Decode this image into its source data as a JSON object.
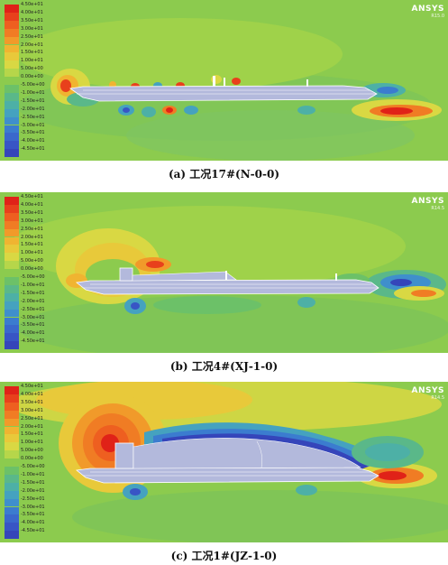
{
  "legend_labels": [
    "4.50e+01",
    "4.00e+01",
    "3.50e+01",
    "3.00e+01",
    "2.50e+01",
    "2.00e+01",
    "1.50e+01",
    "1.00e+01",
    "5.00e+00",
    "0.00e+00",
    "-5.00e+00",
    "-1.00e+01",
    "-1.50e+01",
    "-2.00e+01",
    "-2.50e+01",
    "-3.00e+01",
    "-3.50e+01",
    "-4.00e+01",
    "-4.50e+01"
  ],
  "legend_colors": [
    "#e02218",
    "#e8401c",
    "#ee5f20",
    "#f07c24",
    "#f19a2a",
    "#f0b431",
    "#e8c93a",
    "#d9d843",
    "#b6d64a",
    "#8ccb4e",
    "#6cc168",
    "#5ab889",
    "#4db0a6",
    "#45a2bf",
    "#3f8fcc",
    "#3b7ccf",
    "#3a68cc",
    "#3855c5",
    "#3545ba"
  ],
  "panels": [
    {
      "caption": "(a) 工况17#(N-0-0)",
      "brand": "ANSYS",
      "version": "R15.0"
    },
    {
      "caption": "(b) 工况4#(XJ-1-0)",
      "brand": "ANSYS",
      "version": "R14.5"
    },
    {
      "caption": "(c) 工况1#(JZ-1-0)",
      "brand": "ANSYS",
      "version": "R14.5"
    }
  ]
}
